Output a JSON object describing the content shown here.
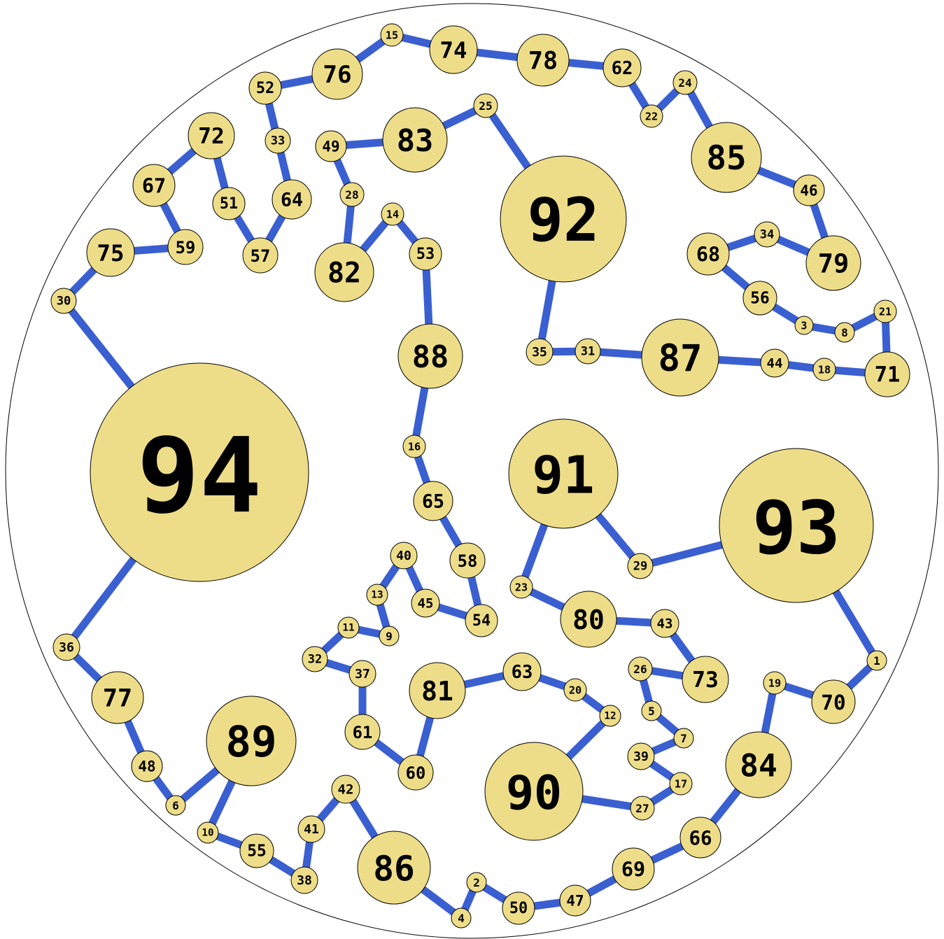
{
  "colors": {
    "node_fill": "#eedd88",
    "edge": "#3a5fd0",
    "border": "#000000"
  },
  "nodes": [
    "1",
    "2",
    "3",
    "4",
    "5",
    "6",
    "7",
    "8",
    "9",
    "10",
    "11",
    "12",
    "13",
    "14",
    "15",
    "16",
    "17",
    "18",
    "19",
    "20",
    "21",
    "22",
    "23",
    "24",
    "25",
    "26",
    "27",
    "28",
    "29",
    "30",
    "31",
    "32",
    "33",
    "34",
    "35",
    "36",
    "37",
    "38",
    "39",
    "40",
    "41",
    "42",
    "43",
    "44",
    "45",
    "46",
    "47",
    "48",
    "49",
    "50",
    "51",
    "52",
    "53",
    "54",
    "55",
    "56",
    "57",
    "58",
    "59",
    "60",
    "61",
    "62",
    "63",
    "64",
    "65",
    "66",
    "67",
    "68",
    "69",
    "70",
    "71",
    "72",
    "73",
    "74",
    "75",
    "76",
    "77",
    "78",
    "79",
    "80",
    "81",
    "82",
    "83",
    "84",
    "85",
    "86",
    "87",
    "88",
    "89",
    "90",
    "91",
    "92",
    "93",
    "94"
  ],
  "edges": [
    [
      "94",
      "30"
    ],
    [
      "30",
      "75"
    ],
    [
      "75",
      "59"
    ],
    [
      "59",
      "67"
    ],
    [
      "67",
      "72"
    ],
    [
      "72",
      "51"
    ],
    [
      "51",
      "57"
    ],
    [
      "57",
      "64"
    ],
    [
      "64",
      "33"
    ],
    [
      "33",
      "52"
    ],
    [
      "52",
      "76"
    ],
    [
      "76",
      "15"
    ],
    [
      "15",
      "74"
    ],
    [
      "74",
      "78"
    ],
    [
      "78",
      "62"
    ],
    [
      "62",
      "22"
    ],
    [
      "22",
      "24"
    ],
    [
      "24",
      "85"
    ],
    [
      "85",
      "46"
    ],
    [
      "46",
      "79"
    ],
    [
      "79",
      "34"
    ],
    [
      "34",
      "68"
    ],
    [
      "68",
      "56"
    ],
    [
      "56",
      "3"
    ],
    [
      "3",
      "8"
    ],
    [
      "8",
      "21"
    ],
    [
      "21",
      "71"
    ],
    [
      "71",
      "18"
    ],
    [
      "18",
      "44"
    ],
    [
      "44",
      "87"
    ],
    [
      "87",
      "31"
    ],
    [
      "31",
      "35"
    ],
    [
      "35",
      "92"
    ],
    [
      "92",
      "25"
    ],
    [
      "25",
      "83"
    ],
    [
      "83",
      "49"
    ],
    [
      "49",
      "28"
    ],
    [
      "28",
      "82"
    ],
    [
      "82",
      "14"
    ],
    [
      "14",
      "53"
    ],
    [
      "53",
      "88"
    ],
    [
      "88",
      "16"
    ],
    [
      "16",
      "65"
    ],
    [
      "65",
      "58"
    ],
    [
      "58",
      "54"
    ],
    [
      "54",
      "45"
    ],
    [
      "45",
      "40"
    ],
    [
      "40",
      "13"
    ],
    [
      "13",
      "9"
    ],
    [
      "9",
      "11"
    ],
    [
      "11",
      "32"
    ],
    [
      "32",
      "37"
    ],
    [
      "37",
      "61"
    ],
    [
      "61",
      "60"
    ],
    [
      "60",
      "81"
    ],
    [
      "81",
      "63"
    ],
    [
      "63",
      "20"
    ],
    [
      "20",
      "12"
    ],
    [
      "12",
      "90"
    ],
    [
      "90",
      "27"
    ],
    [
      "27",
      "17"
    ],
    [
      "17",
      "39"
    ],
    [
      "39",
      "7"
    ],
    [
      "7",
      "5"
    ],
    [
      "5",
      "26"
    ],
    [
      "26",
      "73"
    ],
    [
      "73",
      "43"
    ],
    [
      "43",
      "80"
    ],
    [
      "80",
      "23"
    ],
    [
      "23",
      "91"
    ],
    [
      "91",
      "29"
    ],
    [
      "29",
      "93"
    ],
    [
      "93",
      "1"
    ],
    [
      "1",
      "70"
    ],
    [
      "70",
      "19"
    ],
    [
      "19",
      "84"
    ],
    [
      "84",
      "66"
    ],
    [
      "66",
      "69"
    ],
    [
      "69",
      "47"
    ],
    [
      "47",
      "50"
    ],
    [
      "50",
      "2"
    ],
    [
      "2",
      "4"
    ],
    [
      "4",
      "86"
    ],
    [
      "86",
      "42"
    ],
    [
      "42",
      "41"
    ],
    [
      "41",
      "38"
    ],
    [
      "38",
      "55"
    ],
    [
      "55",
      "10"
    ],
    [
      "10",
      "89"
    ],
    [
      "89",
      "6"
    ],
    [
      "6",
      "48"
    ],
    [
      "48",
      "77"
    ],
    [
      "77",
      "36"
    ],
    [
      "36",
      "94"
    ]
  ]
}
